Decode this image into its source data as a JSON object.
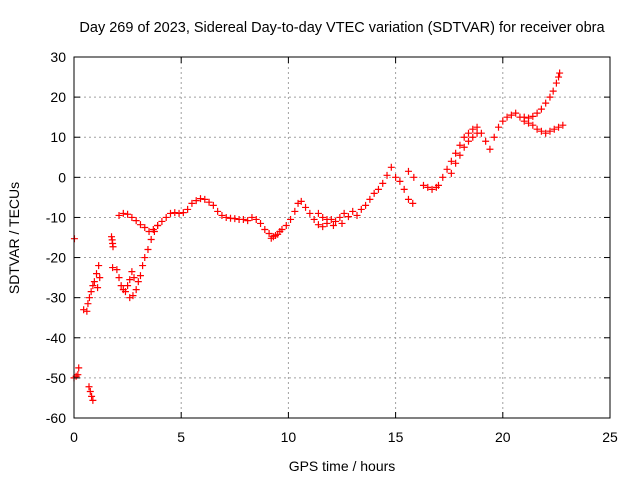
{
  "chart_data": {
    "type": "scatter",
    "title": "Day 269 of 2023, Sidereal Day-to-day VTEC variation (SDTVAR) for receiver obra",
    "xlabel": "GPS time / hours",
    "ylabel": "SDTVAR / TECUs",
    "xlim": [
      0,
      25
    ],
    "ylim": [
      -60,
      30
    ],
    "xticks": [
      0,
      5,
      10,
      15,
      20,
      25
    ],
    "yticks": [
      -60,
      -50,
      -40,
      -30,
      -20,
      -10,
      0,
      10,
      20,
      30
    ],
    "grid": true,
    "marker": "plus",
    "color": "#ff0000",
    "series": [
      {
        "values": [
          [
            0.0,
            -50.0
          ],
          [
            0.1,
            -49.6
          ],
          [
            0.18,
            -49.2
          ],
          [
            0.22,
            -47.5
          ],
          [
            0.02,
            -15.3
          ],
          [
            0.7,
            -52.2
          ],
          [
            0.76,
            -53.4
          ],
          [
            0.82,
            -54.6
          ],
          [
            0.88,
            -55.6
          ],
          [
            0.45,
            -33.0
          ],
          [
            0.6,
            -33.4
          ],
          [
            0.65,
            -31.5
          ],
          [
            0.72,
            -30.0
          ],
          [
            0.8,
            -28.5
          ],
          [
            0.88,
            -27.0
          ],
          [
            0.95,
            -26.0
          ],
          [
            1.05,
            -24.0
          ],
          [
            1.15,
            -22.0
          ],
          [
            1.75,
            -14.8
          ],
          [
            1.78,
            -15.6
          ],
          [
            1.8,
            -16.5
          ],
          [
            1.82,
            -17.3
          ],
          [
            1.8,
            -22.5
          ],
          [
            2.0,
            -23.0
          ],
          [
            2.1,
            -25.0
          ],
          [
            2.2,
            -27.0
          ],
          [
            2.3,
            -28.0
          ],
          [
            2.4,
            -28.5
          ],
          [
            2.5,
            -27.0
          ],
          [
            2.6,
            -25.5
          ],
          [
            2.7,
            -23.5
          ],
          [
            2.8,
            -25.0
          ],
          [
            2.9,
            -28.0
          ],
          [
            3.0,
            -26.0
          ],
          [
            3.1,
            -24.5
          ],
          [
            3.2,
            -22.0
          ],
          [
            3.3,
            -20.0
          ],
          [
            3.45,
            -18.0
          ],
          [
            3.6,
            -15.5
          ],
          [
            3.75,
            -13.5
          ],
          [
            3.9,
            -12.0
          ],
          [
            2.1,
            -9.5
          ],
          [
            2.3,
            -9.0
          ],
          [
            2.5,
            -9.2
          ],
          [
            2.7,
            -10.0
          ],
          [
            2.9,
            -10.8
          ],
          [
            3.1,
            -11.8
          ],
          [
            3.3,
            -12.5
          ],
          [
            3.5,
            -13.5
          ],
          [
            3.7,
            -13.0
          ],
          [
            3.9,
            -12.0
          ],
          [
            4.1,
            -11.0
          ],
          [
            4.3,
            -10.0
          ],
          [
            4.5,
            -9.0
          ],
          [
            4.7,
            -8.8
          ],
          [
            4.9,
            -9.0
          ],
          [
            5.1,
            -8.8
          ],
          [
            5.3,
            -8.0
          ],
          [
            5.5,
            -6.5
          ],
          [
            5.7,
            -5.8
          ],
          [
            5.9,
            -5.3
          ],
          [
            6.1,
            -5.5
          ],
          [
            6.3,
            -6.2
          ],
          [
            6.5,
            -7.0
          ],
          [
            6.7,
            -8.5
          ],
          [
            6.9,
            -9.5
          ],
          [
            7.1,
            -10.0
          ],
          [
            7.3,
            -10.2
          ],
          [
            7.5,
            -10.3
          ],
          [
            7.7,
            -10.5
          ],
          [
            7.9,
            -10.5
          ],
          [
            8.1,
            -10.8
          ],
          [
            8.3,
            -10.0
          ],
          [
            8.5,
            -10.5
          ],
          [
            8.7,
            -11.5
          ],
          [
            8.9,
            -13.0
          ],
          [
            9.1,
            -14.0
          ],
          [
            9.3,
            -14.8
          ],
          [
            9.5,
            -14.2
          ],
          [
            9.7,
            -13.0
          ],
          [
            9.9,
            -12.0
          ],
          [
            10.1,
            -10.5
          ],
          [
            10.3,
            -8.5
          ],
          [
            10.45,
            -6.5
          ],
          [
            10.6,
            -6.0
          ],
          [
            10.8,
            -7.5
          ],
          [
            11.0,
            -9.0
          ],
          [
            11.2,
            -10.5
          ],
          [
            11.4,
            -11.8
          ],
          [
            11.6,
            -12.3
          ],
          [
            11.8,
            -11.5
          ],
          [
            12.0,
            -10.5
          ],
          [
            12.2,
            -11.0
          ],
          [
            12.4,
            -10.0
          ],
          [
            12.6,
            -9.0
          ],
          [
            12.8,
            -9.8
          ],
          [
            13.0,
            -8.5
          ],
          [
            13.2,
            -9.5
          ],
          [
            13.4,
            -8.0
          ],
          [
            13.6,
            -7.0
          ],
          [
            13.8,
            -5.5
          ],
          [
            14.0,
            -4.0
          ],
          [
            14.2,
            -3.0
          ],
          [
            14.4,
            -1.5
          ],
          [
            14.6,
            0.5
          ],
          [
            14.8,
            2.5
          ],
          [
            15.0,
            0.0
          ],
          [
            15.2,
            -1.0
          ],
          [
            15.4,
            -3.0
          ],
          [
            15.6,
            -5.5
          ],
          [
            15.8,
            -6.5
          ],
          [
            15.6,
            1.5
          ],
          [
            15.85,
            0.0
          ],
          [
            16.3,
            -2.0
          ],
          [
            16.5,
            -2.5
          ],
          [
            16.7,
            -3.0
          ],
          [
            16.9,
            -2.5
          ],
          [
            17.0,
            -2.0
          ],
          [
            17.2,
            0.0
          ],
          [
            17.4,
            2.0
          ],
          [
            17.6,
            4.0
          ],
          [
            17.8,
            6.0
          ],
          [
            18.0,
            8.0
          ],
          [
            18.2,
            10.0
          ],
          [
            18.4,
            11.0
          ],
          [
            18.6,
            12.0
          ],
          [
            18.8,
            12.5
          ],
          [
            19.0,
            11.0
          ],
          [
            19.2,
            9.0
          ],
          [
            19.4,
            7.0
          ],
          [
            19.6,
            10.0
          ],
          [
            19.8,
            12.5
          ],
          [
            20.0,
            14.0
          ],
          [
            20.2,
            15.0
          ],
          [
            20.4,
            15.5
          ],
          [
            20.6,
            16.0
          ],
          [
            20.8,
            15.0
          ],
          [
            21.0,
            14.0
          ],
          [
            21.2,
            13.5
          ],
          [
            21.4,
            13.0
          ],
          [
            21.6,
            12.0
          ],
          [
            21.8,
            11.5
          ],
          [
            22.0,
            11.0
          ],
          [
            22.2,
            11.5
          ],
          [
            22.4,
            12.0
          ],
          [
            22.6,
            12.5
          ],
          [
            22.8,
            13.0
          ],
          [
            21.0,
            15.0
          ],
          [
            21.2,
            14.8
          ],
          [
            21.4,
            15.2
          ],
          [
            21.6,
            16.0
          ],
          [
            21.8,
            17.0
          ],
          [
            22.0,
            18.5
          ],
          [
            22.2,
            20.0
          ],
          [
            22.35,
            21.5
          ],
          [
            22.5,
            23.5
          ],
          [
            22.6,
            25.0
          ],
          [
            22.65,
            26.0
          ],
          [
            17.6,
            1.0
          ],
          [
            17.8,
            3.5
          ],
          [
            18.0,
            5.5
          ],
          [
            18.2,
            7.5
          ],
          [
            18.4,
            9.0
          ],
          [
            18.6,
            10.0
          ],
          [
            18.8,
            11.0
          ],
          [
            9.2,
            -15.2
          ],
          [
            9.4,
            -14.5
          ],
          [
            9.6,
            -13.5
          ],
          [
            11.4,
            -9.0
          ],
          [
            11.6,
            -10.0
          ],
          [
            11.8,
            -10.5
          ],
          [
            12.1,
            -12.0
          ],
          [
            12.5,
            -11.5
          ],
          [
            2.6,
            -30.0
          ],
          [
            2.75,
            -29.5
          ],
          [
            1.2,
            -25.0
          ],
          [
            1.1,
            -27.5
          ]
        ]
      }
    ]
  }
}
